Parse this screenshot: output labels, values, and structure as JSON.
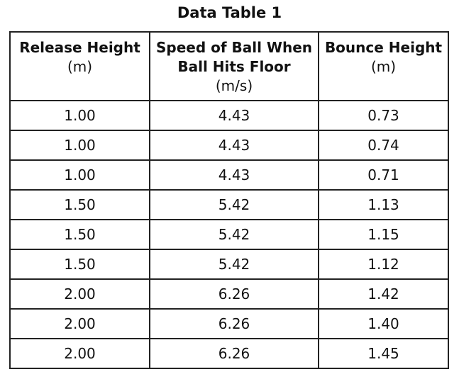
{
  "title": "Data Table 1",
  "headers": [
    {
      "lines": [
        "Release Height"
      ],
      "unit": "(m)"
    },
    {
      "lines": [
        "Speed of Ball When",
        "Ball Hits Floor"
      ],
      "unit": "(m/s)"
    },
    {
      "lines": [
        "Bounce Height"
      ],
      "unit": "(m)"
    }
  ],
  "rows": [
    [
      "1.00",
      "4.43",
      "0.73"
    ],
    [
      "1.00",
      "4.43",
      "0.74"
    ],
    [
      "1.00",
      "4.43",
      "0.71"
    ],
    [
      "1.50",
      "5.42",
      "1.13"
    ],
    [
      "1.50",
      "5.42",
      "1.15"
    ],
    [
      "1.50",
      "5.42",
      "1.12"
    ],
    [
      "2.00",
      "6.26",
      "1.42"
    ],
    [
      "2.00",
      "6.26",
      "1.40"
    ],
    [
      "2.00",
      "6.26",
      "1.45"
    ]
  ]
}
